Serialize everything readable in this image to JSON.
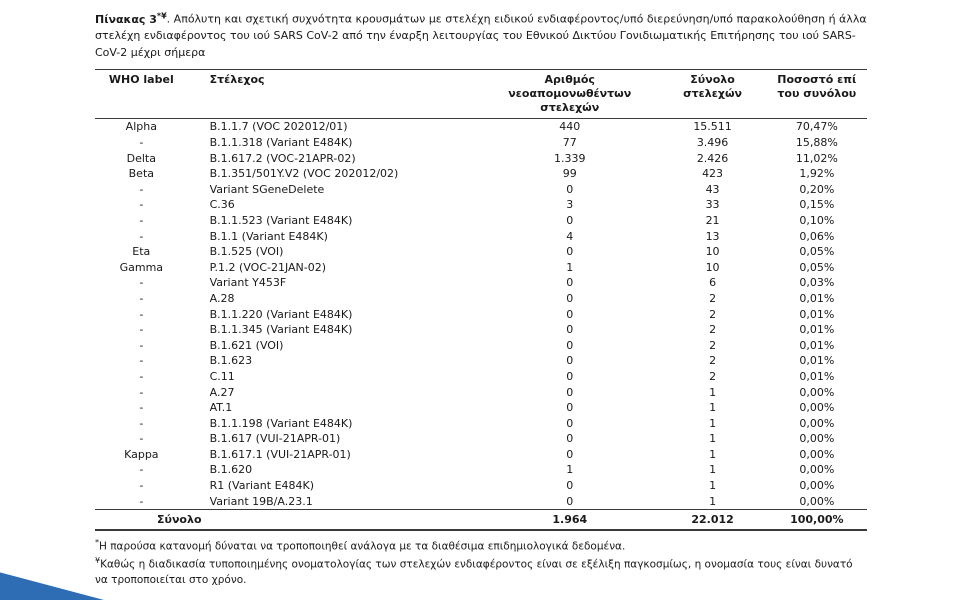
{
  "title": {
    "bold": "Πίνακας 3",
    "sup": "*¥",
    "rest": ". Απόλυτη και σχετική συχνότητα κρουσμάτων με στελέχη ειδικού ενδιαφέροντος/υπό διερεύνηση/υπό παρακολούθηση ή άλλα στελέχη ενδιαφέροντος του ιού SARS CoV-2 από την έναρξη λειτουργίας του Εθνικού Δικτύου Γονιδιωματικής Επιτήρησης του ιού SARS-CoV-2 μέχρι σήμερα"
  },
  "table": {
    "headers": {
      "who": "WHO label",
      "strain": "Στέλεχος",
      "new_isolates": "Αριθμός νεοαπομονωθέντων στελεχών",
      "total_strains": "Σύνολο στελεχών",
      "pct_of_total": "Ποσοστό επί του συνόλου"
    },
    "rows": [
      [
        "Alpha",
        "B.1.1.7 (VOC 202012/01)",
        "440",
        "15.511",
        "70,47%"
      ],
      [
        "-",
        "B.1.1.318 (Variant E484K)",
        "77",
        "3.496",
        "15,88%"
      ],
      [
        "Delta",
        "B.1.617.2 (VOC-21APR-02)",
        "1.339",
        "2.426",
        "11,02%"
      ],
      [
        "Beta",
        "B.1.351/501Y.V2 (VOC 202012/02)",
        "99",
        "423",
        "1,92%"
      ],
      [
        "-",
        "Variant SGeneDelete",
        "0",
        "43",
        "0,20%"
      ],
      [
        "-",
        "C.36",
        "3",
        "33",
        "0,15%"
      ],
      [
        "-",
        "B.1.1.523 (Variant E484K)",
        "0",
        "21",
        "0,10%"
      ],
      [
        "-",
        "B.1.1 (Variant E484K)",
        "4",
        "13",
        "0,06%"
      ],
      [
        "Eta",
        "B.1.525 (VOI)",
        "0",
        "10",
        "0,05%"
      ],
      [
        "Gamma",
        "P.1.2 (VOC-21JAN-02)",
        "1",
        "10",
        "0,05%"
      ],
      [
        "-",
        "Variant Y453F",
        "0",
        "6",
        "0,03%"
      ],
      [
        "-",
        "A.28",
        "0",
        "2",
        "0,01%"
      ],
      [
        "-",
        "B.1.1.220 (Variant E484K)",
        "0",
        "2",
        "0,01%"
      ],
      [
        "-",
        "B.1.1.345 (Variant E484K)",
        "0",
        "2",
        "0,01%"
      ],
      [
        "-",
        "B.1.621 (VOI)",
        "0",
        "2",
        "0,01%"
      ],
      [
        "-",
        "B.1.623",
        "0",
        "2",
        "0,01%"
      ],
      [
        "-",
        "C.11",
        "0",
        "2",
        "0,01%"
      ],
      [
        "-",
        "A.27",
        "0",
        "1",
        "0,00%"
      ],
      [
        "-",
        "AT.1",
        "0",
        "1",
        "0,00%"
      ],
      [
        "-",
        "B.1.1.198 (Variant E484K)",
        "0",
        "1",
        "0,00%"
      ],
      [
        "-",
        "B.1.617 (VUI-21APR-01)",
        "0",
        "1",
        "0,00%"
      ],
      [
        "Kappa",
        "B.1.617.1 (VUI-21APR-01)",
        "0",
        "1",
        "0,00%"
      ],
      [
        "-",
        "B.1.620",
        "1",
        "1",
        "0,00%"
      ],
      [
        "-",
        "R1 (Variant E484K)",
        "0",
        "1",
        "0,00%"
      ],
      [
        "-",
        "Variant 19B/A.23.1",
        "0",
        "1",
        "0,00%"
      ]
    ],
    "total": {
      "label": "Σύνολο",
      "new_isolates": "1.964",
      "total_strains": "22.012",
      "pct_of_total": "100,00%"
    }
  },
  "footnotes": [
    {
      "marker": "*",
      "text": "Η παρούσα κατανομή δύναται να τροποποιηθεί ανάλογα με τα διαθέσιμα επιδημιολογικά δεδομένα."
    },
    {
      "marker": "¥",
      "text": "Καθώς η διαδικασία τυποποιημένης ονοματολογίας των στελεχών ενδιαφέροντος είναι σε εξέλιξη παγκοσμίως, η ονομασία τους είναι δυνατό να τροποποιείται στο χρόνο."
    }
  ],
  "decoration": {
    "color": "#2e6db4"
  }
}
